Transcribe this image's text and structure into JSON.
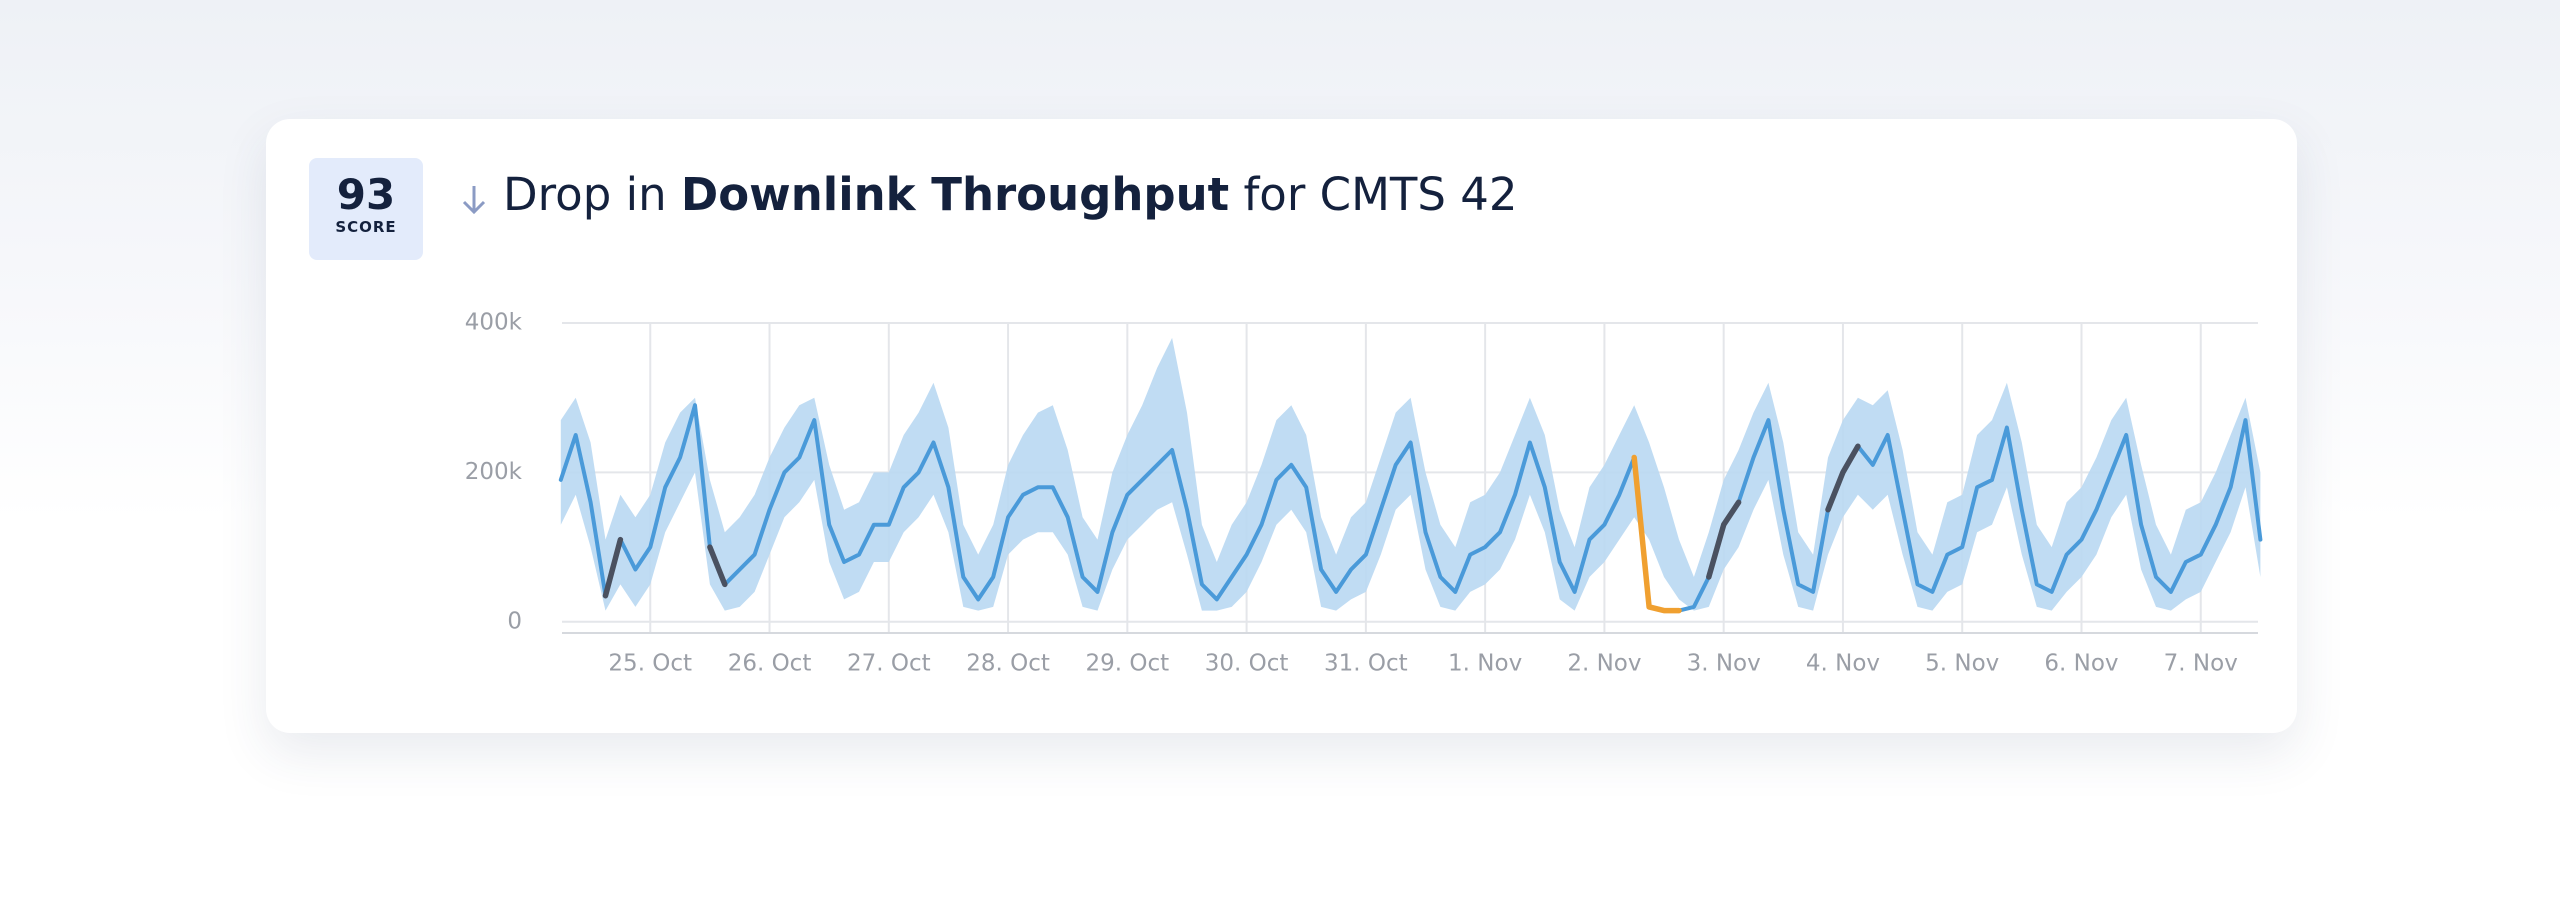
{
  "header": {
    "score": 93,
    "score_label": "SCORE",
    "title_pre": "Drop in",
    "title_metric": "Downlink Throughput",
    "title_post": "for CMTS 42"
  },
  "chart_data": {
    "type": "line",
    "xlim": [
      -0.74,
      13.48
    ],
    "xticks": [
      {
        "value": 0,
        "label": "25. Oct"
      },
      {
        "value": 1,
        "label": "26. Oct"
      },
      {
        "value": 2,
        "label": "27. Oct"
      },
      {
        "value": 3,
        "label": "28. Oct"
      },
      {
        "value": 4,
        "label": "29. Oct"
      },
      {
        "value": 5,
        "label": "30. Oct"
      },
      {
        "value": 6,
        "label": "31. Oct"
      },
      {
        "value": 7,
        "label": "1. Nov"
      },
      {
        "value": 8,
        "label": "2. Nov"
      },
      {
        "value": 9,
        "label": "3. Nov"
      },
      {
        "value": 10,
        "label": "4. Nov"
      },
      {
        "value": 11,
        "label": "5. Nov"
      },
      {
        "value": 12,
        "label": "6. Nov"
      },
      {
        "value": 13,
        "label": "7. Nov"
      }
    ],
    "ylim": [
      -15,
      400
    ],
    "yticks": [
      0,
      {
        "value": 200,
        "label": "200k"
      },
      {
        "value": 400,
        "label": "400k"
      }
    ],
    "grid": true,
    "x": [
      -0.75,
      -0.625,
      -0.5,
      -0.375,
      -0.25,
      -0.125,
      0,
      0.125,
      0.25,
      0.375,
      0.5,
      0.625,
      0.75,
      0.875,
      1,
      1.125,
      1.25,
      1.375,
      1.5,
      1.625,
      1.75,
      1.875,
      2,
      2.125,
      2.25,
      2.375,
      2.5,
      2.625,
      2.75,
      2.875,
      3,
      3.125,
      3.25,
      3.375,
      3.5,
      3.625,
      3.75,
      3.875,
      4,
      4.125,
      4.25,
      4.375,
      4.5,
      4.625,
      4.75,
      4.875,
      5,
      5.125,
      5.25,
      5.375,
      5.5,
      5.625,
      5.75,
      5.875,
      6,
      6.125,
      6.25,
      6.375,
      6.5,
      6.625,
      6.75,
      6.875,
      7,
      7.125,
      7.25,
      7.375,
      7.5,
      7.625,
      7.75,
      7.875,
      8,
      8.125,
      8.25,
      8.375,
      8.5,
      8.625,
      8.75,
      8.875,
      9,
      9.125,
      9.25,
      9.375,
      9.5,
      9.625,
      9.75,
      9.875,
      10,
      10.125,
      10.25,
      10.375,
      10.5,
      10.625,
      10.75,
      10.875,
      11,
      11.125,
      11.25,
      11.375,
      11.5,
      11.625,
      11.75,
      11.875,
      12,
      12.125,
      12.25,
      12.375,
      12.5,
      12.625,
      12.75,
      12.875,
      13,
      13.125,
      13.25,
      13.375,
      13.5
    ],
    "series": [
      {
        "color": "#4a9ad9",
        "band_color": "#b9d8f2",
        "values": [
          190,
          250,
          160,
          35,
          110,
          70,
          100,
          180,
          220,
          290,
          100,
          50,
          70,
          90,
          150,
          200,
          220,
          270,
          130,
          80,
          90,
          130,
          130,
          180,
          200,
          240,
          180,
          60,
          30,
          60,
          140,
          170,
          180,
          180,
          140,
          60,
          40,
          120,
          170,
          190,
          210,
          230,
          150,
          50,
          30,
          60,
          90,
          130,
          190,
          210,
          180,
          70,
          40,
          70,
          90,
          150,
          210,
          240,
          120,
          60,
          40,
          90,
          100,
          120,
          170,
          240,
          180,
          80,
          40,
          110,
          130,
          170,
          220,
          20,
          15,
          15,
          20,
          60,
          130,
          160,
          220,
          270,
          150,
          50,
          40,
          150,
          200,
          235,
          210,
          250,
          150,
          50,
          40,
          90,
          100,
          180,
          190,
          260,
          150,
          50,
          40,
          90,
          110,
          150,
          200,
          250,
          130,
          60,
          40,
          80,
          90,
          130,
          180,
          270,
          110
        ],
        "band_low": [
          130,
          170,
          100,
          15,
          50,
          20,
          50,
          120,
          160,
          200,
          50,
          15,
          20,
          40,
          90,
          140,
          160,
          190,
          80,
          30,
          40,
          80,
          80,
          120,
          140,
          170,
          120,
          20,
          15,
          20,
          90,
          110,
          120,
          120,
          90,
          20,
          15,
          70,
          110,
          130,
          150,
          160,
          90,
          15,
          15,
          20,
          40,
          80,
          130,
          150,
          120,
          20,
          15,
          30,
          40,
          90,
          150,
          170,
          70,
          20,
          15,
          40,
          50,
          70,
          110,
          170,
          120,
          30,
          15,
          60,
          80,
          110,
          140,
          110,
          60,
          30,
          15,
          20,
          70,
          100,
          150,
          190,
          90,
          20,
          15,
          90,
          140,
          170,
          150,
          170,
          90,
          20,
          15,
          40,
          50,
          120,
          130,
          180,
          90,
          20,
          15,
          40,
          60,
          90,
          140,
          170,
          70,
          20,
          15,
          30,
          40,
          80,
          120,
          180,
          60
        ],
        "band_high": [
          270,
          300,
          240,
          110,
          170,
          140,
          170,
          240,
          280,
          300,
          190,
          120,
          140,
          170,
          220,
          260,
          290,
          300,
          210,
          150,
          160,
          200,
          200,
          250,
          280,
          320,
          260,
          130,
          90,
          130,
          210,
          250,
          280,
          290,
          230,
          140,
          110,
          200,
          250,
          290,
          340,
          380,
          280,
          130,
          80,
          130,
          160,
          210,
          270,
          290,
          250,
          140,
          90,
          140,
          160,
          220,
          280,
          300,
          200,
          130,
          100,
          160,
          170,
          200,
          250,
          300,
          250,
          150,
          100,
          180,
          210,
          250,
          290,
          240,
          180,
          110,
          60,
          120,
          190,
          230,
          280,
          320,
          240,
          120,
          90,
          220,
          270,
          300,
          290,
          310,
          230,
          120,
          90,
          160,
          170,
          250,
          270,
          320,
          240,
          130,
          100,
          160,
          180,
          220,
          270,
          300,
          210,
          130,
          90,
          150,
          160,
          200,
          250,
          300,
          200
        ]
      },
      {
        "color": "#4a5160",
        "values": [
          null,
          null,
          null,
          35,
          110,
          null,
          null,
          null,
          null,
          null,
          100,
          50,
          null,
          null,
          null,
          null,
          null,
          null,
          null,
          null,
          null,
          null,
          null,
          null,
          null,
          null,
          null,
          null,
          null,
          null,
          null,
          null,
          null,
          null,
          null,
          null,
          null,
          null,
          null,
          null,
          null,
          null,
          null,
          null,
          null,
          null,
          null,
          null,
          null,
          null,
          null,
          null,
          null,
          null,
          null,
          null,
          null,
          null,
          null,
          null,
          null,
          null,
          null,
          null,
          null,
          null,
          null,
          null,
          null,
          null,
          null,
          null,
          null,
          null,
          null,
          null,
          null,
          60,
          130,
          160,
          null,
          null,
          null,
          null,
          null,
          150,
          200,
          235,
          null,
          null,
          null,
          null,
          null,
          null,
          null,
          null,
          null,
          null,
          null,
          null,
          null,
          null,
          null,
          null,
          null,
          null,
          null,
          null,
          null,
          null,
          null,
          null,
          null,
          null,
          null
        ]
      },
      {
        "color": "#f0a030",
        "values": [
          null,
          null,
          null,
          null,
          null,
          null,
          null,
          null,
          null,
          null,
          null,
          null,
          null,
          null,
          null,
          null,
          null,
          null,
          null,
          null,
          null,
          null,
          null,
          null,
          null,
          null,
          null,
          null,
          null,
          null,
          null,
          null,
          null,
          null,
          null,
          null,
          null,
          null,
          null,
          null,
          null,
          null,
          null,
          null,
          null,
          null,
          null,
          null,
          null,
          null,
          null,
          null,
          null,
          null,
          null,
          null,
          null,
          null,
          null,
          null,
          null,
          null,
          null,
          null,
          null,
          null,
          null,
          null,
          null,
          null,
          null,
          null,
          220,
          20,
          15,
          15,
          null,
          null,
          null,
          null,
          null,
          null,
          null,
          null,
          null,
          null,
          null,
          null,
          null,
          null,
          null,
          null,
          null,
          null,
          null,
          null,
          null,
          null,
          null,
          null,
          null,
          null,
          null,
          null,
          null,
          null,
          null,
          null,
          null,
          null,
          null,
          null,
          null,
          null,
          null
        ]
      }
    ]
  }
}
